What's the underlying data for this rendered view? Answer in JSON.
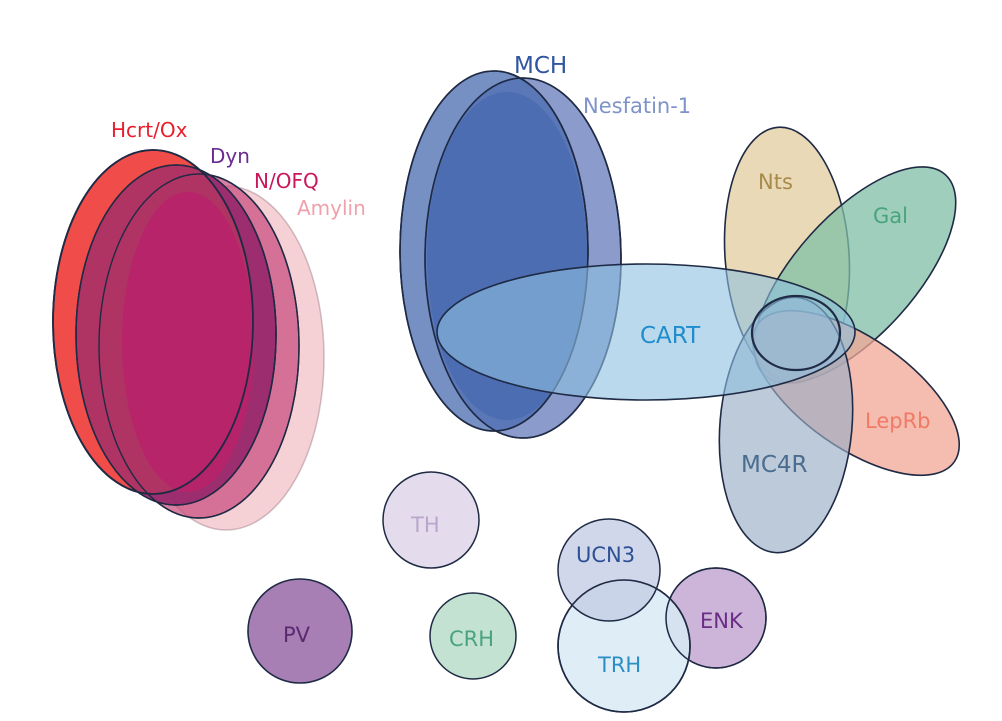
{
  "labels": {
    "hcrt": "Hcrt/Ox",
    "dyn": "Dyn",
    "nofq": "N/OFQ",
    "amylin": "Amylin",
    "mch": "MCH",
    "nesfatin": "Nesfatin-1",
    "cart": "CART",
    "nts": "Nts",
    "gal": "Gal",
    "leprb": "LepRb",
    "mc4r": "MC4R",
    "th": "TH",
    "ucn3": "UCN3",
    "pv": "PV",
    "crh": "CRH",
    "trh": "TRH",
    "enk": "ENK"
  },
  "colors": {
    "hcrt_fill": "#ef4c4a",
    "hcrt_text": "#e8202e",
    "dyn_fill": "#9a2c6e",
    "dyn_text": "#6b2c91",
    "nofq_fill": "#c8487a",
    "nofq_text": "#c8185a",
    "amylin_fill": "#f3c6cc",
    "amylin_text": "#f0a0aa",
    "core_fill": "#b8226a",
    "mch_fill": "#4a6bb0",
    "mch_text": "#2e54a2",
    "nesfatin_fill": "#8a9bcc",
    "nesfatin_text": "#7e93c9",
    "cart_fill": "#8ec0e0",
    "cart_text": "#1f8ccc",
    "nts_fill": "#e8d5ae",
    "nts_text": "#a88a4a",
    "gal_fill": "#7fbfa5",
    "gal_text": "#4aa37f",
    "leprb_fill": "#f2a596",
    "leprb_text": "#ef7a66",
    "mc4r_fill": "#9aaec6",
    "mc4r_text": "#4a6d8f",
    "th_fill": "#e4dcec",
    "th_text": "#b8a6cc",
    "ucn3_fill": "#c4cde5",
    "ucn3_text": "#2e5196",
    "pv_fill": "#a77fb5",
    "pv_text": "#5b2a6e",
    "crh_fill": "#c3e2d2",
    "crh_text": "#4aa37f",
    "trh_fill": "#d8eaf4",
    "trh_text": "#2b8ec4",
    "enk_fill": "#cdb4d9",
    "enk_text": "#6b2c85",
    "outline": "#1f2a44"
  }
}
